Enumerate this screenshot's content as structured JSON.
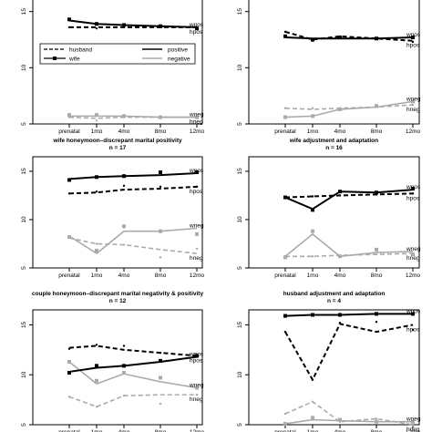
{
  "chart_data": [
    {
      "type": "line",
      "title": "",
      "subtitle": "",
      "xlabel": "",
      "ylabel": "",
      "categories": [
        "prenatal",
        "1mo",
        "4mo",
        "8mo",
        "12mo"
      ],
      "ylim": [
        5,
        17
      ],
      "yticks": [
        5,
        10,
        15
      ],
      "grid": false,
      "legend": {
        "position": "top",
        "left": [
          {
            "label": "husband",
            "style": "dashed"
          },
          {
            "label": "wife",
            "style": "solid-square"
          }
        ],
        "right": [
          {
            "label": "positive",
            "color": "#000000"
          },
          {
            "label": "negative",
            "color": "#aaaaaa"
          }
        ]
      },
      "series": [
        {
          "name": "wpos",
          "x": [
            0,
            1,
            2,
            3,
            4
          ],
          "values": [
            14.2,
            13.9,
            13.8,
            13.7,
            13.6
          ],
          "pts": [
            14.3,
            13.9,
            13.8,
            13.7,
            13.5
          ],
          "color": "#000000",
          "dash": false,
          "marker": "square"
        },
        {
          "name": "hpos",
          "x": [
            0,
            1,
            2,
            3,
            4
          ],
          "values": [
            13.6,
            13.6,
            13.6,
            13.6,
            13.6
          ],
          "pts": [
            13.6,
            13.5,
            13.6,
            13.6,
            13.6
          ],
          "color": "#000000",
          "dash": true,
          "marker": "dot"
        },
        {
          "name": "wneg",
          "x": [
            0,
            1,
            2,
            3,
            4
          ],
          "values": [
            5.7,
            5.7,
            5.7,
            5.6,
            5.6
          ],
          "pts": [
            5.8,
            5.8,
            5.7,
            5.6,
            5.6
          ],
          "color": "#aaaaaa",
          "dash": false,
          "marker": "square"
        },
        {
          "name": "hneg",
          "x": [
            0,
            1,
            2,
            3,
            4
          ],
          "values": [
            5.6,
            5.5,
            5.6,
            5.6,
            5.6
          ],
          "pts": [
            5.6,
            5.3,
            5.6,
            5.6,
            5.6
          ],
          "color": "#aaaaaa",
          "dash": true,
          "marker": "dot"
        }
      ]
    },
    {
      "type": "line",
      "title": "",
      "subtitle": "",
      "xlabel": "",
      "ylabel": "",
      "categories": [
        "prenatal",
        "1mo",
        "4mo",
        "8mo",
        "12mo"
      ],
      "ylim": [
        5,
        17
      ],
      "yticks": [
        5,
        10,
        15
      ],
      "grid": false,
      "series": [
        {
          "name": "wpos",
          "x": [
            0,
            1,
            2,
            3,
            4
          ],
          "values": [
            12.7,
            12.6,
            12.6,
            12.6,
            12.7
          ],
          "pts": [
            12.8,
            12.5,
            12.7,
            12.6,
            12.7
          ],
          "color": "#000000",
          "dash": false,
          "marker": "square"
        },
        {
          "name": "hpos",
          "x": [
            0,
            1,
            2,
            3,
            4
          ],
          "values": [
            13.2,
            12.5,
            12.8,
            12.6,
            12.4
          ],
          "pts": [
            13.2,
            12.4,
            12.7,
            12.6,
            12.3
          ],
          "color": "#000000",
          "dash": true,
          "marker": "dot"
        },
        {
          "name": "wneg",
          "x": [
            0,
            1,
            2,
            3,
            4
          ],
          "values": [
            5.6,
            5.7,
            6.3,
            6.5,
            7.0
          ],
          "pts": [
            5.6,
            5.7,
            6.3,
            6.6,
            7.0
          ],
          "color": "#aaaaaa",
          "dash": false,
          "marker": "square"
        },
        {
          "name": "hneg",
          "x": [
            0,
            1,
            2,
            3,
            4
          ],
          "values": [
            6.4,
            6.3,
            6.4,
            6.5,
            6.7
          ],
          "pts": [
            6.4,
            6.4,
            6.4,
            6.6,
            6.7
          ],
          "color": "#aaaaaa",
          "dash": true,
          "marker": "dot"
        }
      ]
    },
    {
      "type": "line",
      "title": "wife honeymoon–discrepant marital positivity",
      "subtitle": "n = 17",
      "xlabel": "",
      "ylabel": "",
      "categories": [
        "prenatal",
        "1mo",
        "4mo",
        "8mo",
        "12mo"
      ],
      "ylim": [
        5,
        16.5
      ],
      "yticks": [
        5,
        10,
        15
      ],
      "grid": false,
      "series": [
        {
          "name": "wpos",
          "x": [
            0,
            1,
            2,
            3,
            4
          ],
          "values": [
            14.2,
            14.4,
            14.5,
            14.6,
            14.8
          ],
          "pts": [
            14.1,
            14.4,
            14.5,
            14.9,
            14.9
          ],
          "color": "#000000",
          "dash": false,
          "marker": "square"
        },
        {
          "name": "hpos",
          "x": [
            0,
            1,
            2,
            3,
            4
          ],
          "values": [
            12.7,
            12.8,
            13.1,
            13.2,
            13.4
          ],
          "pts": [
            12.7,
            12.9,
            13.5,
            13.4,
            13.4
          ],
          "color": "#000000",
          "dash": true,
          "marker": "dot"
        },
        {
          "name": "wneg",
          "x": [
            0,
            1,
            2,
            3,
            4
          ],
          "values": [
            8.3,
            6.5,
            8.8,
            8.8,
            9.1
          ],
          "pts": [
            8.2,
            6.8,
            9.3,
            8.8,
            8.5
          ],
          "color": "#aaaaaa",
          "dash": false,
          "marker": "square"
        },
        {
          "name": "hneg",
          "x": [
            0,
            1,
            2,
            3,
            4
          ],
          "values": [
            8.1,
            7.5,
            7.4,
            6.9,
            6.5
          ],
          "pts": [
            8.2,
            7.5,
            7.4,
            6.1,
            7.0
          ],
          "color": "#aaaaaa",
          "dash": true,
          "marker": "dot"
        }
      ]
    },
    {
      "type": "line",
      "title": "wife adjustment and adaptation",
      "subtitle": "n = 16",
      "xlabel": "",
      "ylabel": "",
      "categories": [
        "prenatal",
        "1mo",
        "4mo",
        "8mo",
        "12mo"
      ],
      "ylim": [
        5,
        16.5
      ],
      "yticks": [
        5,
        10,
        15
      ],
      "grid": false,
      "series": [
        {
          "name": "wpos",
          "x": [
            0,
            1,
            2,
            3,
            4
          ],
          "values": [
            12.3,
            11.1,
            12.9,
            12.8,
            13.1
          ],
          "pts": [
            12.3,
            11.0,
            12.9,
            12.8,
            13.2
          ],
          "color": "#000000",
          "dash": false,
          "marker": "square"
        },
        {
          "name": "hpos",
          "x": [
            0,
            1,
            2,
            3,
            4
          ],
          "values": [
            12.3,
            12.4,
            12.5,
            12.6,
            12.7
          ],
          "pts": [
            12.3,
            12.4,
            12.5,
            12.6,
            12.7
          ],
          "color": "#000000",
          "dash": true,
          "marker": "dot"
        },
        {
          "name": "wneg",
          "x": [
            0,
            1,
            2,
            3,
            4
          ],
          "values": [
            6.2,
            8.5,
            6.2,
            6.6,
            6.7
          ],
          "pts": [
            6.1,
            8.8,
            6.2,
            6.9,
            6.4
          ],
          "color": "#aaaaaa",
          "dash": false,
          "marker": "square"
        },
        {
          "name": "hneg",
          "x": [
            0,
            1,
            2,
            3,
            4
          ],
          "values": [
            6.2,
            6.2,
            6.3,
            6.4,
            6.5
          ],
          "pts": [
            6.2,
            6.2,
            6.3,
            6.4,
            6.5
          ],
          "color": "#aaaaaa",
          "dash": true,
          "marker": "dot"
        }
      ]
    },
    {
      "type": "line",
      "title": "couple honeymoon–discrepant marital negativity & positivity",
      "subtitle": "n = 12",
      "xlabel": "",
      "ylabel": "",
      "categories": [
        "prenatal",
        "1mo",
        "4mo",
        "8mo",
        "12mo"
      ],
      "ylim": [
        5,
        16.5
      ],
      "yticks": [
        5,
        10,
        15
      ],
      "grid": false,
      "series": [
        {
          "name": "wpos",
          "x": [
            0,
            1,
            2,
            3,
            4
          ],
          "values": [
            10.3,
            10.7,
            10.9,
            11.3,
            11.8
          ],
          "pts": [
            10.2,
            10.9,
            10.9,
            11.4,
            11.9
          ],
          "color": "#000000",
          "dash": false,
          "marker": "square"
        },
        {
          "name": "hpos",
          "x": [
            0,
            1,
            2,
            3,
            4
          ],
          "values": [
            12.7,
            12.9,
            12.5,
            12.2,
            11.9
          ],
          "pts": [
            12.6,
            13.0,
            12.9,
            12.2,
            11.8
          ],
          "color": "#000000",
          "dash": true,
          "marker": "dot"
        },
        {
          "name": "wneg",
          "x": [
            0,
            1,
            2,
            3,
            4
          ],
          "values": [
            11.3,
            9.1,
            10.1,
            9.3,
            8.7
          ],
          "pts": [
            11.3,
            9.4,
            10.2,
            9.7,
            8.7
          ],
          "color": "#aaaaaa",
          "dash": false,
          "marker": "square"
        },
        {
          "name": "hneg",
          "x": [
            0,
            1,
            2,
            3,
            4
          ],
          "values": [
            7.8,
            6.8,
            7.9,
            8.0,
            8.0
          ],
          "pts": [
            7.8,
            6.8,
            7.9,
            7.1,
            8.0
          ],
          "color": "#aaaaaa",
          "dash": true,
          "marker": "dot"
        }
      ]
    },
    {
      "type": "line",
      "title": "husband adjustment and adaptation",
      "subtitle": "n = 4",
      "xlabel": "",
      "ylabel": "",
      "categories": [
        "prenatal",
        "1mo",
        "4mo",
        "8mo",
        "12mo"
      ],
      "ylim": [
        5,
        16.5
      ],
      "yticks": [
        5,
        10,
        15
      ],
      "grid": false,
      "series": [
        {
          "name": "wpos",
          "x": [
            0,
            1,
            2,
            3,
            4
          ],
          "values": [
            15.9,
            16.0,
            16.0,
            16.1,
            16.1
          ],
          "pts": [
            15.9,
            16.0,
            16.0,
            16.1,
            16.1
          ],
          "color": "#000000",
          "dash": false,
          "marker": "square"
        },
        {
          "name": "hpos",
          "x": [
            0,
            1,
            2,
            3,
            4
          ],
          "values": [
            14.3,
            9.5,
            15.1,
            14.3,
            15.0
          ],
          "pts": [
            14.3,
            9.5,
            15.2,
            15.3,
            14.5
          ],
          "color": "#000000",
          "dash": true,
          "marker": "dot"
        },
        {
          "name": "wneg",
          "x": [
            0,
            1,
            2,
            3,
            4
          ],
          "values": [
            5.1,
            5.5,
            5.4,
            5.3,
            5.3
          ],
          "pts": [
            5.1,
            5.7,
            5.5,
            5.3,
            5.3
          ],
          "color": "#aaaaaa",
          "dash": false,
          "marker": "square"
        },
        {
          "name": "hneg",
          "x": [
            0,
            1,
            2,
            3,
            4
          ],
          "values": [
            6.1,
            7.3,
            5.3,
            5.6,
            5.0
          ],
          "pts": [
            6.1,
            7.3,
            5.3,
            5.6,
            5.0
          ],
          "color": "#aaaaaa",
          "dash": true,
          "marker": "dot"
        }
      ]
    }
  ]
}
